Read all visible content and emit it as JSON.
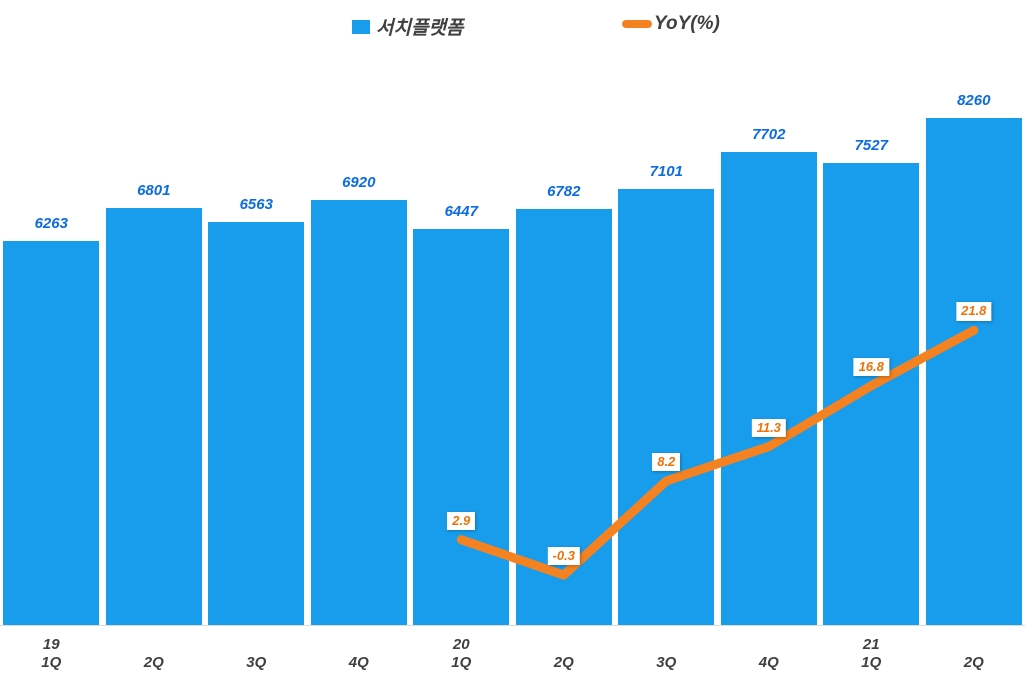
{
  "legend": {
    "bar_label": "서치플랫폼",
    "line_label": "YoY(%)"
  },
  "colors": {
    "bar": "#189CEC",
    "bar_value": "#0C6CE2",
    "line": "#F58220",
    "line_value": "#EE7207",
    "text": "#404040",
    "axis_line": "#DCDCDC",
    "label_bg": "#FFFFFF",
    "background": "#FFFFFF"
  },
  "chart_data": {
    "type": "combo-bar-line",
    "title": "",
    "categories": [
      "1Q",
      "2Q",
      "3Q",
      "4Q",
      "1Q",
      "2Q",
      "3Q",
      "4Q",
      "1Q",
      "2Q"
    ],
    "year_markers": [
      {
        "index": 0,
        "label": "19"
      },
      {
        "index": 4,
        "label": "20"
      },
      {
        "index": 8,
        "label": "21"
      }
    ],
    "series": [
      {
        "name": "서치플랫폼",
        "type": "bar",
        "values": [
          6263,
          6801,
          6563,
          6920,
          6447,
          6782,
          7101,
          7702,
          7527,
          8260
        ]
      },
      {
        "name": "YoY(%)",
        "type": "line",
        "x_indices": [
          4,
          5,
          6,
          7,
          8,
          9
        ],
        "values": [
          2.9,
          -0.3,
          8.2,
          11.3,
          16.8,
          21.8
        ]
      }
    ],
    "bar_axis": {
      "min": 0,
      "max": 9205,
      "visible": false
    },
    "line_axis": {
      "min": -4.8,
      "max": 46.2,
      "visible": false
    },
    "grid": false,
    "legend_position": "top-center",
    "data_labels": true
  }
}
